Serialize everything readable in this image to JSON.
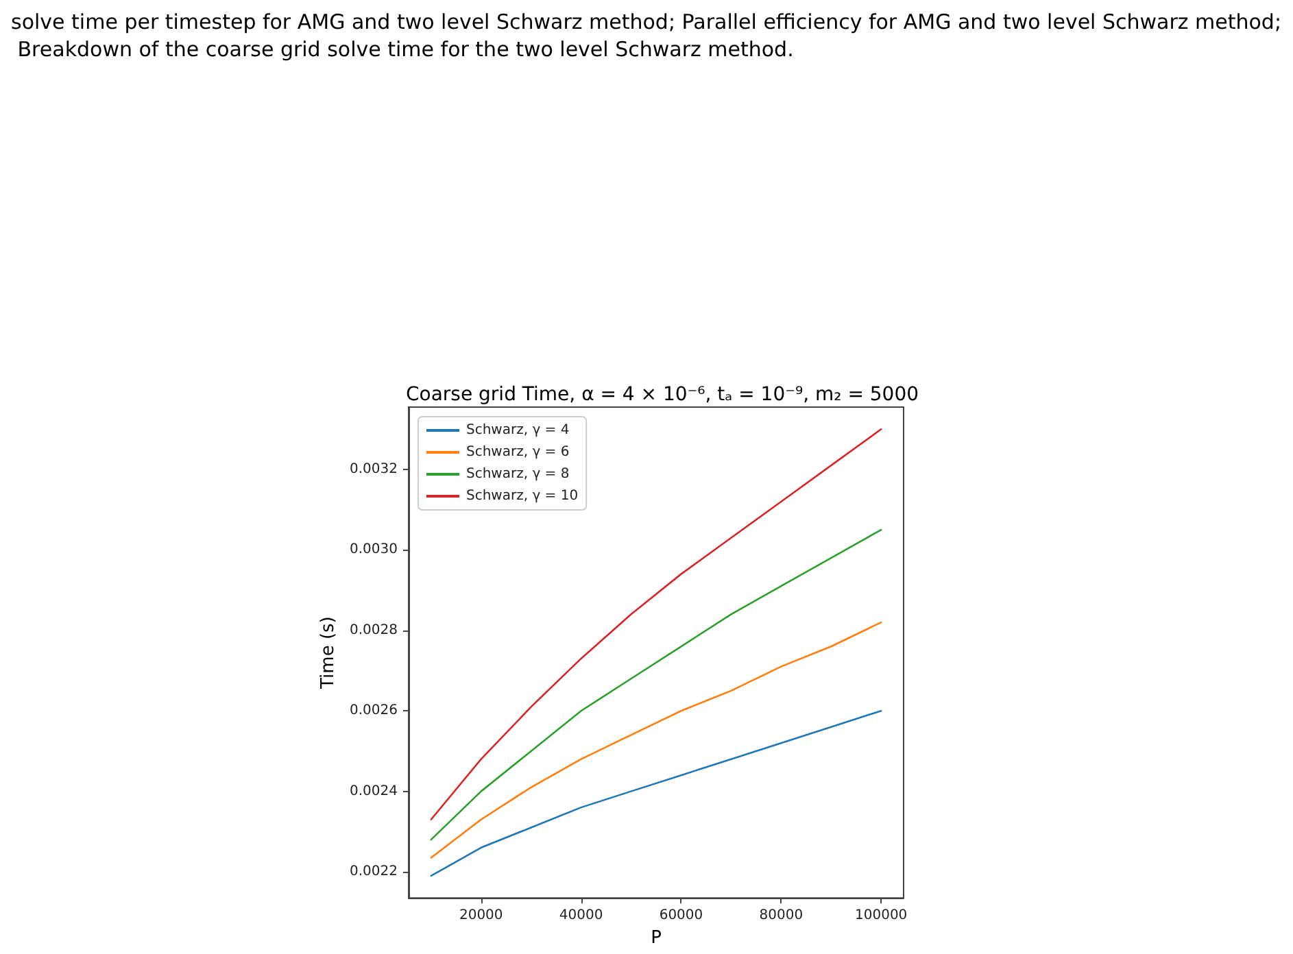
{
  "chart_data": {
    "type": "line",
    "title": "Coarse grid Time, α = 4 × 10⁻⁶, tₐ = 10⁻⁹, m₂ = 5000",
    "xlabel": "P",
    "ylabel": "Time (s)",
    "annotations": [
      "solve time per timestep for AMG and two level Schwarz method; Parallel efficiency for AMG and two level Schwarz method; Breakdown of the coarse grid solve time for the two level Schwarz method."
    ],
    "x": [
      10000,
      20000,
      30000,
      40000,
      50000,
      60000,
      70000,
      80000,
      90000,
      100000
    ],
    "series": [
      {
        "name": "Schwarz, γ = 4",
        "color": "#1f77b4",
        "values": [
          0.00219,
          0.00226,
          0.00231,
          0.00236,
          0.0024,
          0.00244,
          0.00248,
          0.00252,
          0.00256,
          0.0026
        ]
      },
      {
        "name": "Schwarz, γ = 6",
        "color": "#ff7f0e",
        "values": [
          0.002235,
          0.00233,
          0.00241,
          0.00248,
          0.00254,
          0.0026,
          0.00265,
          0.00271,
          0.00276,
          0.00282
        ]
      },
      {
        "name": "Schwarz, γ = 8",
        "color": "#2ca02c",
        "values": [
          0.00228,
          0.0024,
          0.0025,
          0.0026,
          0.00268,
          0.00276,
          0.00284,
          0.00291,
          0.00298,
          0.00305
        ]
      },
      {
        "name": "Schwarz, γ = 10",
        "color": "#d62728",
        "values": [
          0.00233,
          0.00248,
          0.00261,
          0.00273,
          0.00284,
          0.00294,
          0.00303,
          0.00312,
          0.00321,
          0.0033
        ]
      }
    ],
    "xlim": [
      5500,
      104500
    ],
    "xticks": [
      20000,
      40000,
      60000,
      80000,
      100000
    ],
    "ylim": [
      0.002135,
      0.003355
    ],
    "yticks": [
      0.0022,
      0.0024,
      0.0026,
      0.0028,
      {
        "value": 0.003,
        "label": "0.0030"
      },
      0.0032
    ],
    "grid": false,
    "legend": "top left",
    "marker": "none",
    "line_style": "solid"
  }
}
